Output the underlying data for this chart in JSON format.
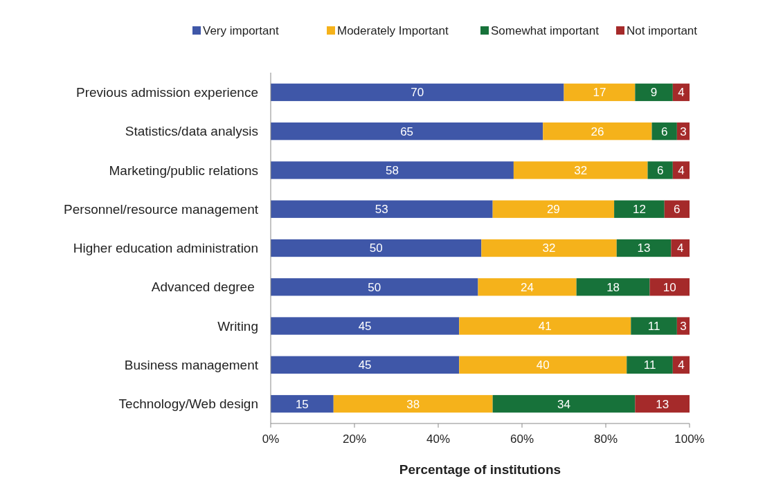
{
  "chart_data": {
    "type": "bar",
    "orientation": "horizontal",
    "stacked": true,
    "xlabel": "Percentage of institutions",
    "categories": [
      "Previous admission experience",
      "Statistics/data analysis",
      "Marketing/public relations",
      "Personnel/resource management",
      "Higher education administration",
      "Advanced degree ",
      "Writing",
      "Business management",
      "Technology/Web design"
    ],
    "xlim": [
      0,
      100
    ],
    "xticks": [
      {
        "value": 0,
        "label": "0%"
      },
      {
        "value": 20,
        "label": "20%"
      },
      {
        "value": 40,
        "label": "40%"
      },
      {
        "value": 60,
        "label": "60%"
      },
      {
        "value": 80,
        "label": "80%"
      },
      {
        "value": 100,
        "label": "100%"
      }
    ],
    "legend": "top",
    "grid": false,
    "series": [
      {
        "name": "Very important",
        "color": "#3f57a8",
        "values": [
          70,
          65,
          58,
          53,
          50.3,
          49.5,
          45,
          45,
          15
        ],
        "value_labels": [
          "70",
          "65",
          "58",
          "53",
          "50",
          "50",
          "45",
          "45",
          "15"
        ]
      },
      {
        "name": "Moderately Important",
        "color": "#f5b21b",
        "values": [
          17,
          26,
          32,
          29,
          32.3,
          23.5,
          41,
          40,
          38
        ],
        "value_labels": [
          "17",
          "26",
          "32",
          "29",
          "32",
          "24",
          "41",
          "40",
          "38"
        ]
      },
      {
        "name": "Somewhat important",
        "color": "#17723a",
        "values": [
          9,
          6,
          6,
          12,
          13,
          17.5,
          11,
          11,
          34
        ],
        "value_labels": [
          "9",
          "6",
          "6",
          "12",
          "13",
          "18",
          "11",
          "11",
          "34"
        ]
      },
      {
        "name": "Not important",
        "color": "#a52a2a",
        "values": [
          4,
          3,
          4,
          6,
          4.4,
          9.5,
          3,
          4,
          13
        ],
        "value_labels": [
          "4",
          "3",
          "4",
          "6",
          "4",
          "10",
          "3",
          "4",
          "13"
        ]
      }
    ]
  }
}
